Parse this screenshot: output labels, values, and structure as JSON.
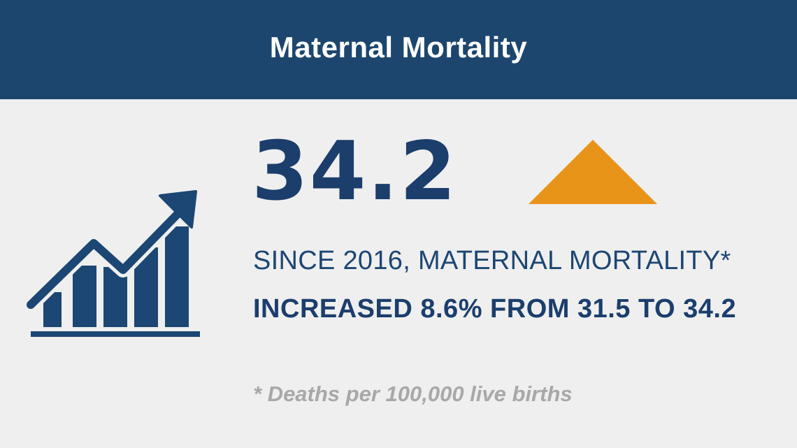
{
  "header": {
    "title": "Maternal Mortality"
  },
  "stat": {
    "value": "34.2",
    "trend_icon": "up-triangle-icon",
    "trend_color": "#e79418"
  },
  "description": {
    "since_line": "SINCE 2016, MATERNAL MORTALITY*",
    "increase_line": "INCREASED 8.6% FROM 31.5 TO 34.2"
  },
  "footnote": {
    "text": "* Deaths per 100,000 live births"
  },
  "icon": {
    "name": "growth-chart-icon",
    "color": "#1c4673"
  },
  "colors": {
    "header_bg": "#1c466e",
    "page_bg": "#efefef",
    "primary_text": "#1b3e6c",
    "accent": "#e79418",
    "muted": "#a8a8a8"
  }
}
